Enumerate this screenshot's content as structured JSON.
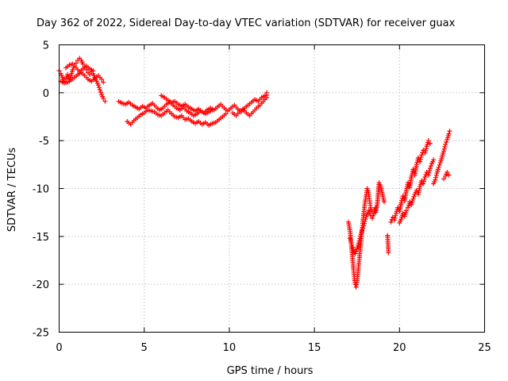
{
  "chart_data": {
    "type": "scatter",
    "title": "Day 362 of 2022, Sidereal Day-to-day VTEC variation (SDTVAR) for receiver guax",
    "xlabel": "GPS time / hours",
    "ylabel": "SDTVAR / TECUs",
    "xlim": [
      0,
      25
    ],
    "ylim": [
      -25,
      5
    ],
    "xticks": [
      0,
      5,
      10,
      15,
      20,
      25
    ],
    "yticks": [
      -25,
      -20,
      -15,
      -10,
      -5,
      0,
      5
    ],
    "grid": true,
    "marker": "+",
    "color": "#ff0000",
    "series": [
      {
        "name": "SDTVAR",
        "segments": [
          [
            [
              0.0,
              2.3
            ],
            [
              0.1,
              2.0
            ],
            [
              0.2,
              1.6
            ],
            [
              0.3,
              1.2
            ],
            [
              0.4,
              1.5
            ],
            [
              0.5,
              1.9
            ],
            [
              0.6,
              1.4
            ],
            [
              0.7,
              1.8
            ],
            [
              0.8,
              2.4
            ],
            [
              0.9,
              2.8
            ],
            [
              1.0,
              3.1
            ],
            [
              1.1,
              3.4
            ],
            [
              1.2,
              3.6
            ],
            [
              1.3,
              3.4
            ],
            [
              1.4,
              3.0
            ],
            [
              1.5,
              2.7
            ],
            [
              1.6,
              2.4
            ],
            [
              1.7,
              2.1
            ],
            [
              1.8,
              1.9
            ],
            [
              1.9,
              2.2
            ],
            [
              2.0,
              2.0
            ],
            [
              2.1,
              1.6
            ],
            [
              2.2,
              1.2
            ],
            [
              2.3,
              0.8
            ],
            [
              2.4,
              0.3
            ],
            [
              2.5,
              -0.2
            ],
            [
              2.6,
              -0.6
            ],
            [
              2.7,
              -0.9
            ]
          ],
          [
            [
              0.1,
              1.2
            ],
            [
              0.3,
              1.0
            ],
            [
              0.5,
              1.1
            ],
            [
              0.7,
              1.3
            ],
            [
              0.9,
              1.6
            ],
            [
              1.1,
              1.9
            ],
            [
              1.3,
              2.1
            ],
            [
              1.5,
              1.8
            ],
            [
              1.7,
              1.4
            ],
            [
              1.9,
              1.2
            ],
            [
              2.1,
              1.5
            ],
            [
              2.3,
              1.8
            ],
            [
              2.5,
              1.4
            ],
            [
              2.6,
              1.1
            ]
          ],
          [
            [
              0.4,
              2.6
            ],
            [
              0.6,
              2.9
            ],
            [
              0.8,
              3.0
            ],
            [
              1.0,
              2.6
            ],
            [
              1.2,
              2.2
            ],
            [
              1.4,
              2.5
            ],
            [
              1.6,
              2.8
            ],
            [
              1.8,
              2.5
            ],
            [
              2.0,
              2.3
            ]
          ],
          [
            [
              3.5,
              -0.9
            ],
            [
              3.7,
              -1.1
            ],
            [
              3.9,
              -1.2
            ],
            [
              4.1,
              -1.0
            ],
            [
              4.3,
              -1.3
            ],
            [
              4.5,
              -1.5
            ],
            [
              4.7,
              -1.7
            ],
            [
              4.9,
              -1.4
            ],
            [
              5.1,
              -1.6
            ],
            [
              5.3,
              -1.3
            ],
            [
              5.5,
              -1.1
            ],
            [
              5.7,
              -1.5
            ],
            [
              5.9,
              -1.8
            ],
            [
              6.1,
              -1.6
            ],
            [
              6.3,
              -1.2
            ],
            [
              6.5,
              -1.0
            ],
            [
              6.7,
              -1.3
            ],
            [
              6.9,
              -1.6
            ],
            [
              7.1,
              -1.8
            ],
            [
              7.3,
              -1.5
            ],
            [
              7.5,
              -1.9
            ],
            [
              7.7,
              -2.1
            ],
            [
              7.9,
              -2.4
            ],
            [
              8.1,
              -2.2
            ],
            [
              8.3,
              -1.9
            ],
            [
              8.5,
              -2.1
            ],
            [
              8.7,
              -1.8
            ],
            [
              8.9,
              -1.6
            ],
            [
              9.1,
              -1.8
            ],
            [
              9.3,
              -1.5
            ],
            [
              9.5,
              -1.2
            ],
            [
              9.7,
              -1.6
            ],
            [
              9.9,
              -1.9
            ],
            [
              10.1,
              -1.6
            ],
            [
              10.3,
              -1.3
            ],
            [
              10.5,
              -1.7
            ],
            [
              10.7,
              -2.0
            ],
            [
              10.9,
              -1.6
            ],
            [
              11.1,
              -1.3
            ],
            [
              11.3,
              -1.0
            ],
            [
              11.5,
              -0.7
            ],
            [
              11.7,
              -0.9
            ],
            [
              11.9,
              -0.5
            ],
            [
              12.1,
              -0.3
            ]
          ],
          [
            [
              4.0,
              -3.0
            ],
            [
              4.2,
              -3.3
            ],
            [
              4.4,
              -2.9
            ],
            [
              4.6,
              -2.6
            ],
            [
              4.8,
              -2.3
            ],
            [
              5.0,
              -2.1
            ],
            [
              5.2,
              -1.8
            ],
            [
              5.4,
              -1.9
            ],
            [
              5.6,
              -2.0
            ],
            [
              5.8,
              -2.3
            ],
            [
              6.0,
              -2.4
            ],
            [
              6.2,
              -2.1
            ],
            [
              6.4,
              -1.8
            ],
            [
              6.6,
              -2.2
            ],
            [
              6.8,
              -2.5
            ],
            [
              7.0,
              -2.6
            ],
            [
              7.2,
              -2.4
            ],
            [
              7.4,
              -2.8
            ],
            [
              7.6,
              -2.7
            ],
            [
              7.8,
              -3.0
            ],
            [
              8.0,
              -3.2
            ],
            [
              8.2,
              -3.0
            ],
            [
              8.4,
              -3.3
            ],
            [
              8.6,
              -3.1
            ],
            [
              8.8,
              -3.4
            ],
            [
              9.0,
              -3.2
            ],
            [
              9.2,
              -3.1
            ],
            [
              9.4,
              -2.8
            ],
            [
              9.6,
              -2.5
            ],
            [
              9.8,
              -2.2
            ]
          ],
          [
            [
              6.0,
              -0.3
            ],
            [
              6.2,
              -0.5
            ],
            [
              6.4,
              -0.8
            ],
            [
              6.6,
              -1.0
            ],
            [
              6.8,
              -0.9
            ],
            [
              7.0,
              -1.2
            ],
            [
              7.2,
              -1.4
            ],
            [
              7.4,
              -1.2
            ],
            [
              7.6,
              -1.5
            ],
            [
              7.8,
              -1.7
            ],
            [
              8.0,
              -1.9
            ],
            [
              8.2,
              -1.7
            ],
            [
              8.4,
              -2.0
            ],
            [
              8.6,
              -2.2
            ],
            [
              8.8,
              -2.0
            ],
            [
              9.0,
              -1.8
            ]
          ],
          [
            [
              10.2,
              -2.1
            ],
            [
              10.4,
              -2.4
            ],
            [
              10.6,
              -2.0
            ],
            [
              10.8,
              -1.7
            ],
            [
              11.0,
              -2.1
            ],
            [
              11.2,
              -2.4
            ],
            [
              11.4,
              -2.0
            ],
            [
              11.6,
              -1.6
            ],
            [
              11.8,
              -1.3
            ],
            [
              12.0,
              -0.9
            ],
            [
              12.2,
              -0.5
            ],
            [
              12.2,
              0.0
            ]
          ],
          [
            [
              17.0,
              -13.5
            ],
            [
              17.1,
              -14.5
            ],
            [
              17.15,
              -15.5
            ],
            [
              17.2,
              -16.5
            ],
            [
              17.25,
              -17.5
            ],
            [
              17.3,
              -18.5
            ],
            [
              17.35,
              -19.4
            ],
            [
              17.4,
              -20.0
            ],
            [
              17.45,
              -20.3
            ],
            [
              17.5,
              -19.8
            ],
            [
              17.55,
              -19.0
            ],
            [
              17.6,
              -18.0
            ],
            [
              17.65,
              -17.2
            ],
            [
              17.7,
              -16.2
            ],
            [
              17.75,
              -15.2
            ],
            [
              17.8,
              -14.3
            ],
            [
              17.85,
              -13.4
            ],
            [
              17.9,
              -12.6
            ],
            [
              17.95,
              -11.8
            ],
            [
              18.0,
              -11.2
            ],
            [
              18.05,
              -10.6
            ],
            [
              18.1,
              -10.0
            ],
            [
              18.15,
              -10.2
            ],
            [
              18.2,
              -10.8
            ],
            [
              18.25,
              -11.3
            ],
            [
              18.3,
              -12.0
            ],
            [
              18.4,
              -12.4
            ],
            [
              18.5,
              -12.2
            ],
            [
              18.6,
              -12.5
            ],
            [
              18.7,
              -11.6
            ],
            [
              18.75,
              -10.5
            ],
            [
              18.8,
              -9.4
            ],
            [
              18.9,
              -9.8
            ],
            [
              19.0,
              -10.6
            ],
            [
              19.1,
              -11.4
            ]
          ],
          [
            [
              17.1,
              -15.2
            ],
            [
              17.2,
              -15.9
            ],
            [
              17.3,
              -16.4
            ],
            [
              17.4,
              -16.8
            ],
            [
              17.5,
              -16.3
            ],
            [
              17.6,
              -15.7
            ],
            [
              17.7,
              -15.0
            ],
            [
              17.8,
              -14.4
            ],
            [
              17.9,
              -13.9
            ],
            [
              18.0,
              -13.2
            ],
            [
              18.1,
              -12.7
            ],
            [
              18.2,
              -12.3
            ],
            [
              18.3,
              -12.8
            ],
            [
              18.4,
              -13.1
            ],
            [
              18.5,
              -12.6
            ],
            [
              18.6,
              -12.0
            ]
          ],
          [
            [
              19.3,
              -14.9
            ],
            [
              19.35,
              -16.7
            ]
          ],
          [
            [
              19.5,
              -13.5
            ],
            [
              19.6,
              -13.0
            ],
            [
              19.7,
              -13.3
            ],
            [
              19.8,
              -12.6
            ],
            [
              19.9,
              -12.0
            ],
            [
              20.0,
              -12.4
            ],
            [
              20.1,
              -11.5
            ],
            [
              20.2,
              -10.8
            ],
            [
              20.3,
              -11.3
            ],
            [
              20.4,
              -10.2
            ],
            [
              20.5,
              -9.4
            ],
            [
              20.6,
              -9.9
            ],
            [
              20.7,
              -8.8
            ],
            [
              20.8,
              -8.0
            ],
            [
              20.9,
              -8.6
            ],
            [
              21.0,
              -7.5
            ],
            [
              21.1,
              -6.8
            ],
            [
              21.2,
              -7.2
            ],
            [
              21.3,
              -6.5
            ],
            [
              21.4,
              -6.0
            ],
            [
              21.5,
              -6.3
            ],
            [
              21.6,
              -5.6
            ],
            [
              21.7,
              -5.0
            ],
            [
              21.8,
              -5.3
            ]
          ],
          [
            [
              20.0,
              -13.6
            ],
            [
              20.1,
              -13.2
            ],
            [
              20.2,
              -12.6
            ],
            [
              20.3,
              -12.9
            ],
            [
              20.4,
              -12.3
            ],
            [
              20.5,
              -12.0
            ],
            [
              20.6,
              -11.4
            ],
            [
              20.7,
              -11.7
            ],
            [
              20.8,
              -11.1
            ],
            [
              20.9,
              -10.6
            ],
            [
              21.0,
              -10.2
            ],
            [
              21.1,
              -10.6
            ],
            [
              21.2,
              -9.8
            ],
            [
              21.3,
              -9.2
            ],
            [
              21.4,
              -9.5
            ],
            [
              21.5,
              -8.8
            ],
            [
              21.6,
              -8.3
            ],
            [
              21.7,
              -8.6
            ],
            [
              21.8,
              -7.9
            ],
            [
              21.9,
              -7.4
            ],
            [
              22.0,
              -7.0
            ]
          ],
          [
            [
              22.0,
              -9.5
            ],
            [
              22.1,
              -9.1
            ],
            [
              22.2,
              -8.4
            ],
            [
              22.3,
              -7.8
            ],
            [
              22.4,
              -7.3
            ],
            [
              22.5,
              -6.7
            ],
            [
              22.6,
              -6.1
            ],
            [
              22.7,
              -5.4
            ],
            [
              22.8,
              -4.9
            ],
            [
              22.9,
              -4.3
            ],
            [
              22.95,
              -4.0
            ]
          ],
          [
            [
              22.6,
              -9.0
            ],
            [
              22.7,
              -8.7
            ],
            [
              22.8,
              -8.3
            ],
            [
              22.9,
              -8.6
            ]
          ]
        ]
      }
    ]
  }
}
